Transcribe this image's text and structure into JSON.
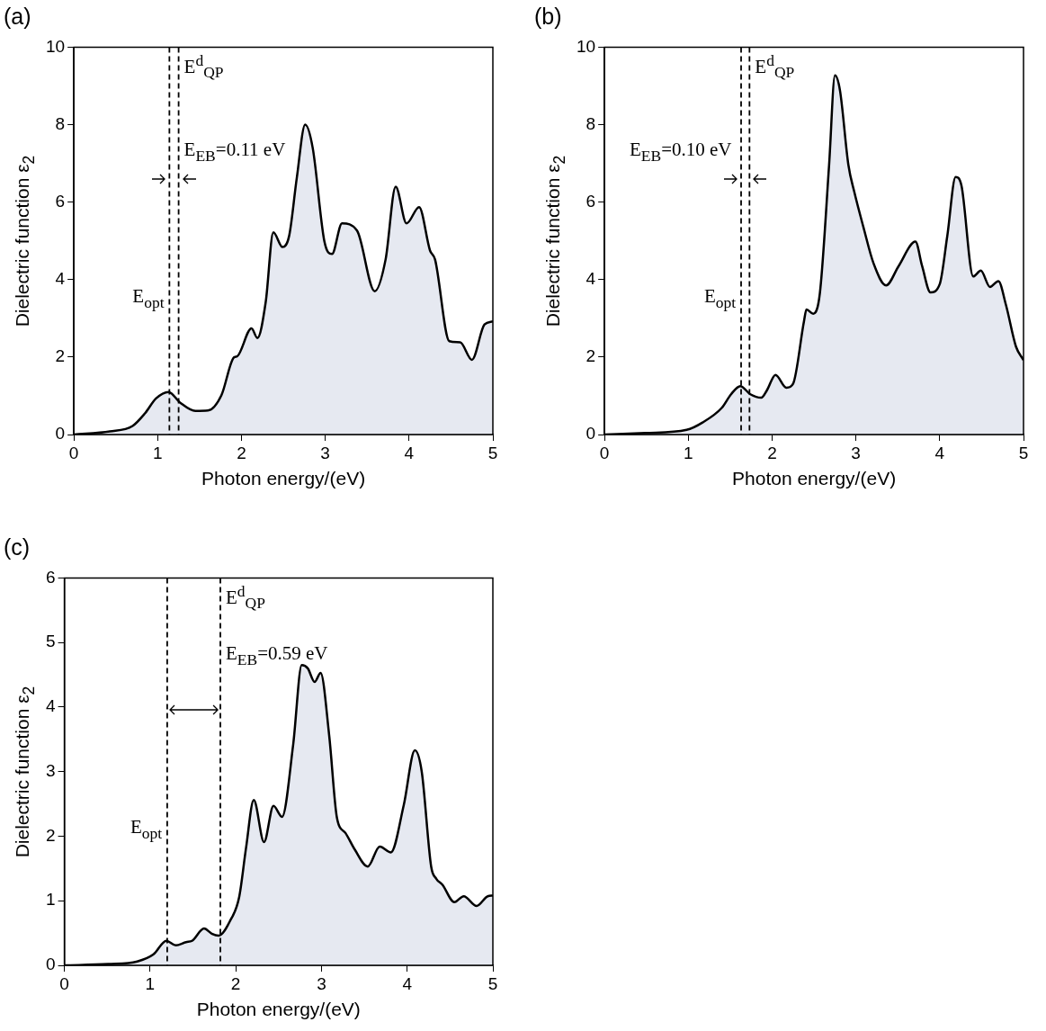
{
  "chart_data": [
    {
      "type": "area",
      "title": "(a)",
      "xlabel": "Photon energy/(eV)",
      "ylabel": "Dielectric function  ε$_{2}$",
      "xlim": [
        0,
        5
      ],
      "xticks": [
        0,
        1,
        2,
        3,
        4,
        5
      ],
      "ylim": [
        0,
        10
      ],
      "yticks": [
        0,
        2,
        4,
        6,
        8,
        10
      ],
      "grid": false,
      "legend": false,
      "marker": "none",
      "x": [
        0,
        0.43,
        0.7,
        0.85,
        0.98,
        1.13,
        1.27,
        1.45,
        1.6,
        1.76,
        1.91,
        1.95,
        2.12,
        2.19,
        2.29,
        2.38,
        2.49,
        2.57,
        2.66,
        2.76,
        2.85,
        2.99,
        3.08,
        3.2,
        3.38,
        3.59,
        3.72,
        3.84,
        3.97,
        4.12,
        4.25,
        4.31,
        4.48,
        4.61,
        4.75,
        4.9,
        5.0
      ],
      "series": [
        {
          "color": "#000000",
          "values": [
            0,
            0.08,
            0.22,
            0.55,
            0.93,
            1.1,
            0.82,
            0.61,
            0.62,
            1.01,
            1.99,
            2.02,
            2.74,
            2.49,
            3.43,
            5.22,
            4.84,
            5.14,
            6.62,
            8.0,
            7.4,
            4.98,
            4.66,
            5.45,
            5.26,
            3.7,
            4.52,
            6.4,
            5.45,
            5.87,
            4.75,
            4.52,
            2.41,
            2.38,
            1.93,
            2.84,
            2.92
          ]
        }
      ],
      "ref_lines": [
        {
          "axis": "x",
          "value": 1.14,
          "line_style": "dashed",
          "color": "#000000",
          "label": "E$_{opt}$"
        },
        {
          "axis": "x",
          "value": 1.25,
          "line_style": "dashed",
          "color": "#000000",
          "label": "E$^{d}$$_{QP}$"
        }
      ],
      "annotations": [
        "E$_{EB}$=0.11 eV"
      ]
    },
    {
      "type": "area",
      "title": "(b)",
      "xlabel": "Photon energy/(eV)",
      "ylabel": "Dielectric function  ε$_{2}$",
      "xlim": [
        0,
        5
      ],
      "xticks": [
        0,
        1,
        2,
        3,
        4,
        5
      ],
      "ylim": [
        0,
        10
      ],
      "yticks": [
        0,
        2,
        4,
        6,
        8,
        10
      ],
      "grid": false,
      "legend": false,
      "marker": "none",
      "x": [
        0,
        0.49,
        0.98,
        1.17,
        1.4,
        1.51,
        1.62,
        1.74,
        1.87,
        1.94,
        2.04,
        2.17,
        2.25,
        2.38,
        2.41,
        2.49,
        2.57,
        2.68,
        2.75,
        2.81,
        2.91,
        2.98,
        3.09,
        3.21,
        3.36,
        3.51,
        3.71,
        3.79,
        3.89,
        4.0,
        4.09,
        4.19,
        4.26,
        4.4,
        4.49,
        4.6,
        4.7,
        4.79,
        4.91,
        5.0
      ],
      "series": [
        {
          "color": "#000000",
          "values": [
            0,
            0.04,
            0.12,
            0.31,
            0.69,
            1.04,
            1.25,
            1.04,
            0.95,
            1.15,
            1.54,
            1.21,
            1.31,
            2.92,
            3.23,
            3.12,
            3.65,
            6.96,
            9.27,
            8.88,
            6.96,
            6.27,
            5.35,
            4.42,
            3.85,
            4.35,
            4.98,
            4.35,
            3.67,
            3.88,
            5.12,
            6.65,
            6.42,
            4.08,
            4.23,
            3.81,
            3.96,
            3.35,
            2.27,
            1.92
          ]
        }
      ],
      "ref_lines": [
        {
          "axis": "x",
          "value": 1.63,
          "line_style": "dashed",
          "color": "#000000",
          "label": "E$_{opt}$"
        },
        {
          "axis": "x",
          "value": 1.73,
          "line_style": "dashed",
          "color": "#000000",
          "label": "E$^{d}$$_{QP}$"
        }
      ],
      "annotations": [
        "E$_{EB}$=0.10 eV"
      ]
    },
    {
      "type": "area",
      "title": "(c)",
      "xlabel": "Photon energy/(eV)",
      "ylabel": "Dielectric function  ε$_{2}$",
      "xlim": [
        0,
        5
      ],
      "xticks": [
        0,
        1,
        2,
        3,
        4,
        5
      ],
      "ylim": [
        0,
        6
      ],
      "yticks": [
        0,
        1,
        2,
        3,
        4,
        5,
        6
      ],
      "grid": false,
      "legend": false,
      "marker": "none",
      "x": [
        0,
        0.51,
        0.85,
        1.04,
        1.19,
        1.3,
        1.42,
        1.49,
        1.63,
        1.72,
        1.8,
        1.93,
        2.04,
        2.12,
        2.21,
        2.33,
        2.44,
        2.54,
        2.67,
        2.77,
        2.84,
        2.92,
        2.99,
        3.09,
        3.18,
        3.28,
        3.39,
        3.54,
        3.68,
        3.81,
        3.96,
        4.09,
        4.17,
        4.28,
        4.34,
        4.41,
        4.55,
        4.66,
        4.81,
        4.94,
        5.0
      ],
      "series": [
        {
          "color": "#000000",
          "values": [
            0,
            0.02,
            0.06,
            0.17,
            0.38,
            0.31,
            0.36,
            0.38,
            0.57,
            0.49,
            0.46,
            0.68,
            1.06,
            1.82,
            2.56,
            1.91,
            2.47,
            2.3,
            3.42,
            4.65,
            4.6,
            4.39,
            4.53,
            3.56,
            2.29,
            2.05,
            1.79,
            1.53,
            1.84,
            1.75,
            2.48,
            3.33,
            3.0,
            1.53,
            1.34,
            1.25,
            0.98,
            1.07,
            0.92,
            1.07,
            1.08
          ]
        }
      ],
      "ref_lines": [
        {
          "axis": "x",
          "value": 1.2,
          "line_style": "dashed",
          "color": "#000000",
          "label": "E$_{opt}$"
        },
        {
          "axis": "x",
          "value": 1.82,
          "line_style": "dashed",
          "color": "#000000",
          "label": "E$^{d}$$_{QP}$"
        }
      ],
      "annotations": [
        "E$_{EB}$=0.59 eV"
      ]
    }
  ]
}
